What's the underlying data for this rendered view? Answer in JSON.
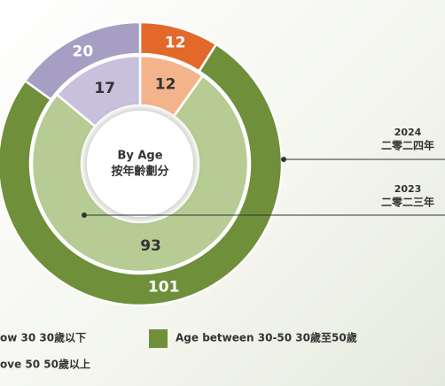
{
  "chart_data": {
    "type": "donut",
    "title": "By Age",
    "subtitle": "按年齡劃分",
    "categories": [
      "ow 30 30歲以下",
      "Age between 30-50 30歲至50歲",
      "ove 50 50歲以上"
    ],
    "legend_colors": [
      "#e2692a",
      "#6f8f3a",
      "#a69ec3"
    ],
    "series": [
      {
        "name": "2024",
        "name_zh": "二零二四年",
        "colors": [
          "#e2692a",
          "#6f8f3a",
          "#a69ec3"
        ],
        "values": [
          12,
          101,
          20
        ]
      },
      {
        "name": "2023",
        "name_zh": "二零二三年",
        "colors": [
          "#f3b48c",
          "#b6cc94",
          "#c8c0dc"
        ],
        "values": [
          12,
          93,
          17
        ]
      }
    ]
  }
}
